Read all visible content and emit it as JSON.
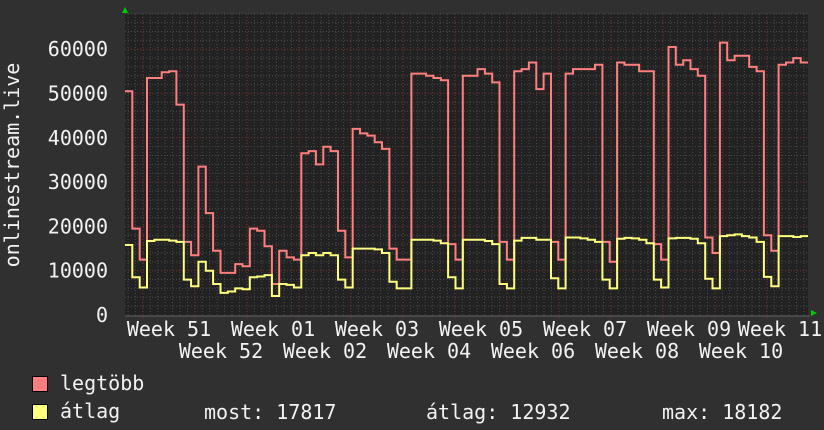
{
  "chart_data": {
    "type": "line",
    "title": "",
    "ylabel": "onlinestream.live",
    "xlabel": "",
    "ylim": [
      0,
      68000
    ],
    "yticks": [
      0,
      10000,
      20000,
      30000,
      40000,
      50000,
      60000
    ],
    "ytick_labels": [
      "0",
      "10000",
      "20000",
      "30000",
      "40000",
      "50000",
      "60000"
    ],
    "xtick_labels": [
      "Week 51",
      "Week 52",
      "Week 01",
      "Week 02",
      "Week 03",
      "Week 04",
      "Week 05",
      "Week 06",
      "Week 07",
      "Week 08",
      "Week 09",
      "Week 10",
      "Week 11"
    ],
    "grid": true,
    "step": true,
    "legend_placement": "bottom-left",
    "series": [
      {
        "name": "legtöbb",
        "color": "#ff7f7f",
        "values": [
          50500,
          19500,
          12500,
          53500,
          53500,
          54800,
          55000,
          47500,
          16500,
          13500,
          33500,
          23000,
          14500,
          9500,
          9500,
          11500,
          11000,
          19500,
          19000,
          15500,
          7000,
          14500,
          13000,
          12500,
          36500,
          37000,
          34000,
          38000,
          37000,
          19000,
          13000,
          42000,
          41000,
          40500,
          39000,
          37500,
          15000,
          12500,
          12500,
          54500,
          54500,
          54000,
          53500,
          53000,
          16000,
          12500,
          54000,
          54000,
          55500,
          54500,
          52500,
          16500,
          12500,
          55000,
          55500,
          57000,
          51000,
          54500,
          16500,
          12500,
          54500,
          55500,
          55500,
          55500,
          56500,
          16500,
          12000,
          57000,
          56500,
          56500,
          55000,
          55000,
          16000,
          12500,
          60500,
          56500,
          57500,
          55500,
          54000,
          17500,
          14000,
          61500,
          57500,
          58500,
          58500,
          56000,
          55000,
          18000,
          14500,
          56500,
          57000,
          58000,
          57000
        ]
      },
      {
        "name": "átlag",
        "color": "#ffff7f",
        "values": [
          15800,
          8500,
          6200,
          16700,
          17000,
          17000,
          16800,
          16500,
          8000,
          6500,
          12000,
          10000,
          7000,
          5000,
          5300,
          6000,
          5800,
          8500,
          8700,
          9000,
          4300,
          7000,
          6800,
          6200,
          13500,
          14000,
          13500,
          14000,
          13500,
          8000,
          6200,
          15000,
          15000,
          15000,
          14800,
          14000,
          7500,
          6000,
          6000,
          17000,
          17000,
          17000,
          16800,
          16200,
          8500,
          6000,
          17000,
          17000,
          17000,
          16700,
          16000,
          7000,
          6000,
          16800,
          17400,
          17400,
          17000,
          17000,
          8300,
          6000,
          17500,
          17500,
          17300,
          17000,
          16500,
          8000,
          6000,
          17200,
          17400,
          17300,
          17000,
          16200,
          8000,
          6200,
          17300,
          17400,
          17400,
          17200,
          16200,
          8200,
          6000,
          17800,
          18000,
          18200,
          17800,
          17500,
          16500,
          8600,
          6500,
          17800,
          17800,
          17600,
          17817
        ]
      }
    ]
  },
  "legend": {
    "items": [
      {
        "label": "legtöbb",
        "color": "#ff7f7f"
      },
      {
        "label": "átlag",
        "color": "#ffff7f"
      }
    ],
    "stats": {
      "most": "most: 17817",
      "atlag": "átlag: 12932",
      "max": "max: 18182"
    }
  },
  "colors": {
    "background": "#303030",
    "plot": "#222222",
    "grid_minor": "#555555",
    "grid_major": "#7a3030",
    "arrow": "#00cc00",
    "text": "#f2f2f2"
  }
}
